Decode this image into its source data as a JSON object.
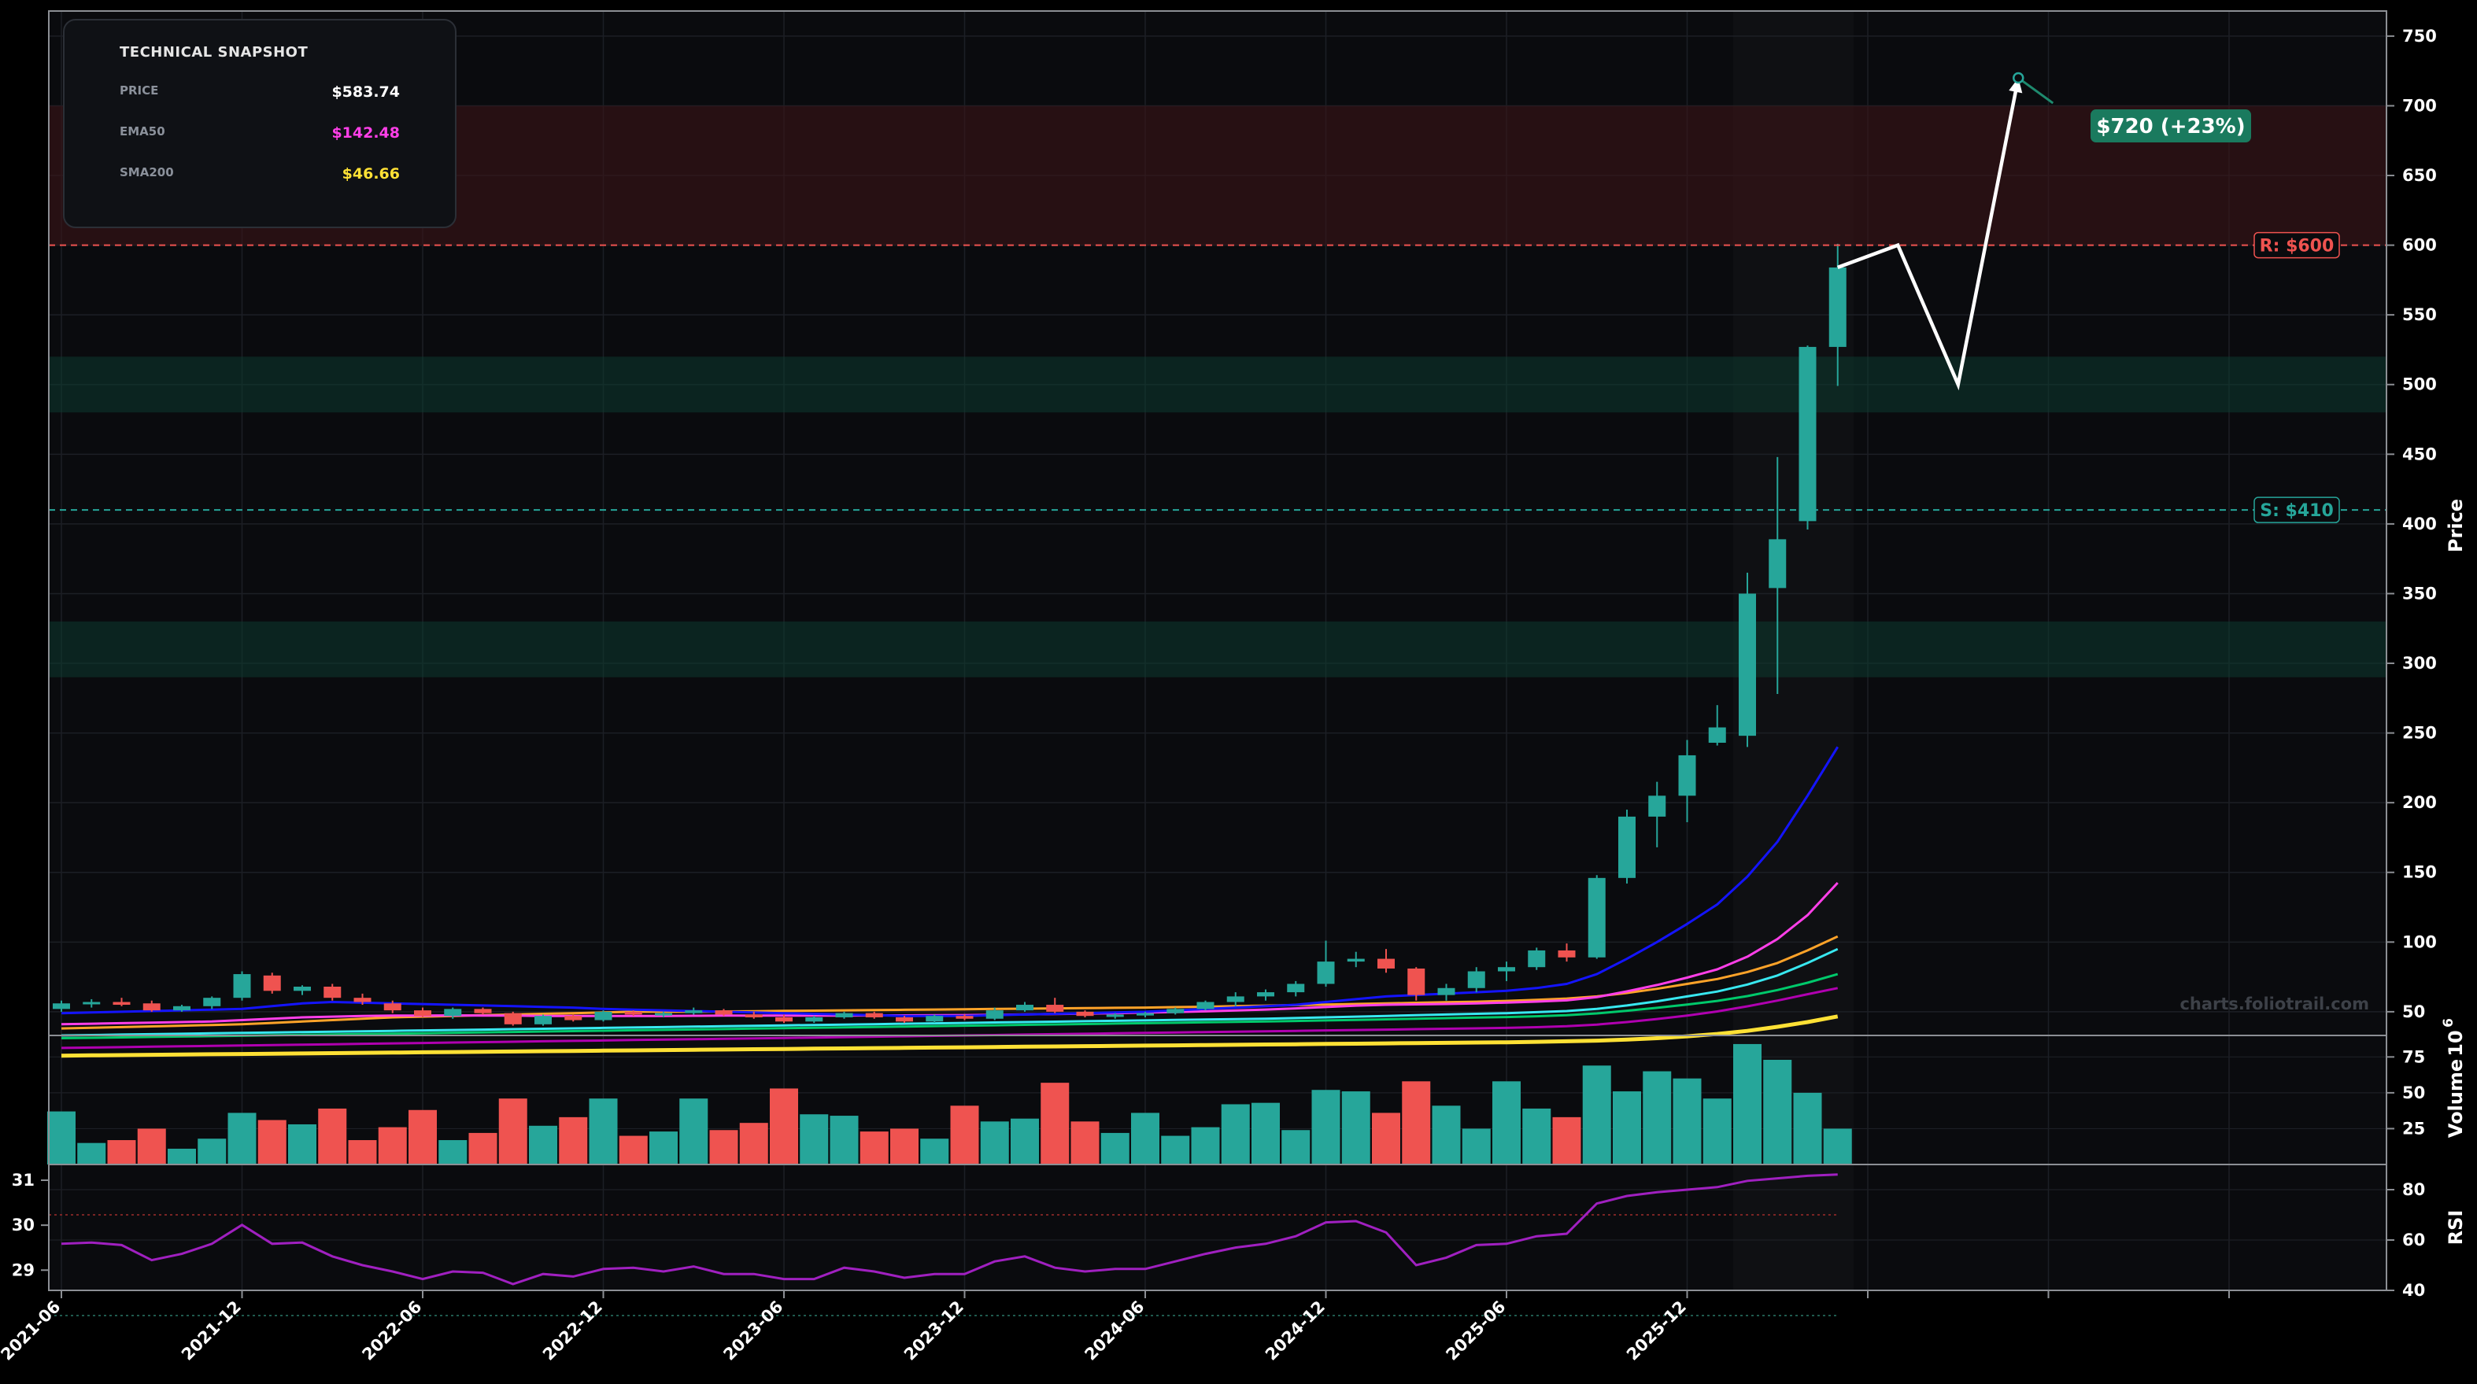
{
  "snapshot": {
    "title": "TECHNICAL SNAPSHOT",
    "rows": [
      {
        "label": "PRICE",
        "value": "$583.74",
        "color": "#ffffff"
      },
      {
        "label": "EMA50",
        "value": "$142.48",
        "color": "#ff3fe8"
      },
      {
        "label": "SMA200",
        "value": "$46.66",
        "color": "#ffe135"
      }
    ]
  },
  "watermark": "charts.foliotrail.com",
  "levels": {
    "resistance": {
      "label": "R: $600",
      "value": 600,
      "color": "#ef5350"
    },
    "support": {
      "label": "S: $410",
      "value": 410,
      "color": "#26a69a"
    }
  },
  "target_label": "$720 (+23%)",
  "colors": {
    "up": "#26a69a",
    "down": "#ef5350",
    "rsi": "#a020c0",
    "background": "#0a0b0e"
  },
  "chart_data": {
    "type": "candlestick",
    "x_tick_labels": [
      "2021-06",
      "2021-12",
      "2022-06",
      "2022-12",
      "2023-06",
      "2023-12",
      "2024-06",
      "2024-12",
      "2025-06",
      "2025-12"
    ],
    "months": [
      "2021-06",
      "2021-07",
      "2021-08",
      "2021-09",
      "2021-10",
      "2021-11",
      "2021-12",
      "2022-01",
      "2022-02",
      "2022-03",
      "2022-04",
      "2022-05",
      "2022-06",
      "2022-07",
      "2022-08",
      "2022-09",
      "2022-10",
      "2022-11",
      "2022-12",
      "2023-01",
      "2023-02",
      "2023-03",
      "2023-04",
      "2023-05",
      "2023-06",
      "2023-07",
      "2023-08",
      "2023-09",
      "2023-10",
      "2023-11",
      "2023-12",
      "2024-01",
      "2024-02",
      "2024-03",
      "2024-04",
      "2024-05",
      "2024-06",
      "2024-07",
      "2024-08",
      "2024-09",
      "2024-10",
      "2024-11",
      "2024-12",
      "2025-01",
      "2025-02",
      "2025-03",
      "2025-04",
      "2025-05",
      "2025-06",
      "2025-07",
      "2025-08",
      "2025-09",
      "2025-10",
      "2025-11",
      "2025-12",
      "2026-01",
      "2026-02",
      "2026-03",
      "2026-04",
      "2026-05"
    ],
    "ohlc": [
      [
        52,
        58,
        50,
        56
      ],
      [
        56,
        59,
        53,
        57
      ],
      [
        57,
        60,
        54,
        55
      ],
      [
        56,
        58,
        50,
        51
      ],
      [
        51,
        55,
        50,
        54
      ],
      [
        54,
        61,
        52,
        60
      ],
      [
        60,
        79,
        58,
        77
      ],
      [
        76,
        78,
        63,
        65
      ],
      [
        65,
        69,
        62,
        68
      ],
      [
        68,
        70,
        58,
        60
      ],
      [
        60,
        63,
        55,
        57
      ],
      [
        56,
        58,
        49,
        51
      ],
      [
        51,
        53,
        46,
        47
      ],
      [
        47,
        53,
        45,
        52
      ],
      [
        52,
        53,
        48,
        49
      ],
      [
        49,
        50,
        40,
        41
      ],
      [
        41,
        48,
        40,
        47
      ],
      [
        47,
        48,
        43,
        44
      ],
      [
        44,
        51,
        43,
        50
      ],
      [
        50,
        51,
        47,
        48
      ],
      [
        48,
        50,
        46,
        49
      ],
      [
        49,
        53,
        48,
        51
      ],
      [
        51,
        52,
        47,
        48
      ],
      [
        48,
        50,
        45,
        46
      ],
      [
        46,
        48,
        42,
        43
      ],
      [
        43,
        47,
        42,
        46
      ],
      [
        46,
        50,
        45,
        49
      ],
      [
        49,
        50,
        45,
        46
      ],
      [
        46,
        47,
        42,
        43
      ],
      [
        43,
        48,
        42,
        47
      ],
      [
        47,
        48,
        44,
        45
      ],
      [
        45,
        53,
        44,
        51
      ],
      [
        51,
        57,
        50,
        55
      ],
      [
        55,
        60,
        49,
        50
      ],
      [
        50,
        51,
        46,
        47
      ],
      [
        47,
        49,
        45,
        48
      ],
      [
        48,
        50,
        46,
        49
      ],
      [
        49,
        53,
        48,
        52
      ],
      [
        52,
        58,
        51,
        57
      ],
      [
        57,
        64,
        54,
        61
      ],
      [
        61,
        66,
        58,
        64
      ],
      [
        64,
        72,
        61,
        70
      ],
      [
        70,
        101,
        68,
        86
      ],
      [
        86,
        93,
        82,
        88
      ],
      [
        88,
        95,
        78,
        81
      ],
      [
        81,
        82,
        58,
        62
      ],
      [
        62,
        70,
        58,
        67
      ],
      [
        67,
        82,
        64,
        79
      ],
      [
        79,
        86,
        72,
        82
      ],
      [
        82,
        96,
        80,
        94
      ],
      [
        94,
        99,
        86,
        89
      ],
      [
        89,
        148,
        88,
        146
      ],
      [
        146,
        195,
        142,
        190
      ],
      [
        190,
        215,
        168,
        205
      ],
      [
        205,
        245,
        186,
        234
      ],
      [
        243,
        270,
        241,
        254
      ],
      [
        248,
        365,
        240,
        350
      ],
      [
        354,
        448,
        278,
        389
      ],
      [
        402,
        528,
        396,
        527
      ],
      [
        527,
        601,
        499,
        584
      ]
    ],
    "volume_millions": [
      37,
      15,
      17,
      25,
      11,
      18,
      36,
      31,
      28,
      39,
      17,
      26,
      38,
      17,
      22,
      46,
      27,
      33,
      46,
      20,
      23,
      46,
      24,
      29,
      53,
      35,
      34,
      23,
      25,
      18,
      41,
      30,
      32,
      57,
      30,
      22,
      36,
      20,
      26,
      42,
      43,
      24,
      52,
      51,
      36,
      58,
      41,
      25,
      58,
      39,
      33,
      69,
      51,
      65,
      60,
      46,
      84,
      73,
      50,
      25
    ],
    "ema50": [
      41,
      41.4,
      41.8,
      42.2,
      42.6,
      43,
      44,
      45,
      46,
      46.5,
      47,
      47.2,
      47.3,
      47.4,
      47.3,
      47.2,
      47,
      47,
      47,
      47,
      47,
      47.1,
      47.2,
      47.2,
      47.2,
      47.2,
      47.3,
      47.4,
      47.4,
      47.5,
      47.6,
      47.8,
      48.1,
      48.4,
      48.7,
      49,
      49.4,
      49.8,
      50.3,
      50.9,
      51.6,
      52.4,
      53.4,
      54.4,
      55,
      55.3,
      55.6,
      56,
      56.6,
      57.3,
      58.2,
      60.5,
      64.6,
      69.2,
      74.5,
      80.4,
      89.5,
      102.2,
      119.3,
      142.5
    ],
    "sma200": [
      18.5,
      18.7,
      18.9,
      19.1,
      19.3,
      19.5,
      19.7,
      19.9,
      20.1,
      20.3,
      20.5,
      20.7,
      20.9,
      21.1,
      21.3,
      21.5,
      21.7,
      21.9,
      22.1,
      22.3,
      22.5,
      22.7,
      22.9,
      23.1,
      23.3,
      23.5,
      23.7,
      23.9,
      24.1,
      24.3,
      24.5,
      24.7,
      24.9,
      25.1,
      25.3,
      25.5,
      25.7,
      25.9,
      26.1,
      26.3,
      26.5,
      26.7,
      26.9,
      27.1,
      27.3,
      27.5,
      27.7,
      27.9,
      28.1,
      28.4,
      28.8,
      29.3,
      30,
      31,
      32.4,
      34.1,
      36.3,
      39.2,
      42.6,
      46.66
    ],
    "ma_blue": [
      49,
      49.5,
      50,
      50.5,
      51,
      51.5,
      52,
      54,
      56,
      57,
      56.5,
      56,
      55.5,
      55,
      54.5,
      54,
      53.5,
      53,
      52,
      51.5,
      51,
      50.5,
      50,
      49.5,
      49,
      48.5,
      48,
      47.5,
      47,
      47,
      47,
      47.5,
      48,
      48.5,
      49,
      49.5,
      50,
      51,
      52,
      53,
      54,
      55,
      57,
      59,
      61,
      62,
      63,
      64,
      65,
      67,
      70,
      77,
      88,
      100,
      113,
      127,
      147,
      172,
      205,
      240
    ],
    "ma_orange": [
      38,
      38.5,
      39,
      39.5,
      40,
      40.5,
      41,
      42,
      43,
      44,
      45,
      46,
      46.5,
      47,
      47.5,
      48,
      48.5,
      49,
      49.5,
      50,
      50,
      50,
      50.2,
      50.4,
      50.6,
      50.8,
      51,
      51.2,
      51.4,
      51.6,
      51.8,
      52,
      52.2,
      52.4,
      52.6,
      52.8,
      53,
      53.3,
      53.6,
      54,
      54.4,
      54.8,
      55.2,
      55.6,
      56,
      56.4,
      56.8,
      57.2,
      57.8,
      58.5,
      59.5,
      61,
      63.5,
      66.5,
      70,
      73.5,
      78.5,
      85,
      94,
      104
    ],
    "ma_cyan": [
      33,
      33.3,
      33.6,
      33.9,
      34.2,
      34.5,
      34.8,
      35.1,
      35.4,
      35.7,
      36,
      36.3,
      36.6,
      36.9,
      37.2,
      37.5,
      37.8,
      38.1,
      38.4,
      38.7,
      39,
      39.3,
      39.6,
      39.9,
      40.2,
      40.5,
      40.8,
      41.1,
      41.4,
      41.7,
      42,
      42.3,
      42.6,
      42.9,
      43.2,
      43.5,
      43.8,
      44.1,
      44.4,
      44.7,
      45,
      45.5,
      46,
      46.5,
      47,
      47.5,
      48,
      48.5,
      49,
      49.7,
      50.5,
      52,
      54.5,
      57.5,
      61,
      64.5,
      69.5,
      76,
      85,
      95
    ],
    "ma_green": [
      31,
      31.3,
      31.6,
      31.9,
      32.2,
      32.5,
      32.8,
      33.1,
      33.4,
      33.7,
      34,
      34.3,
      34.6,
      34.9,
      35.2,
      35.5,
      35.8,
      36.1,
      36.4,
      36.7,
      37,
      37.3,
      37.6,
      37.9,
      38.2,
      38.5,
      38.8,
      39.1,
      39.4,
      39.7,
      40,
      40.3,
      40.6,
      40.9,
      41.2,
      41.5,
      41.8,
      42.1,
      42.4,
      42.7,
      43,
      43.4,
      43.8,
      44.2,
      44.6,
      45,
      45.4,
      45.8,
      46.2,
      46.8,
      47.5,
      48.8,
      50.7,
      52.8,
      55.2,
      57.8,
      61.2,
      65.6,
      70.8,
      77
    ],
    "ma_purple": [
      24,
      24.3,
      24.6,
      24.9,
      25.2,
      25.5,
      25.8,
      26.1,
      26.4,
      26.7,
      27,
      27.3,
      27.6,
      27.9,
      28.2,
      28.5,
      28.8,
      29.1,
      29.4,
      29.7,
      30,
      30.3,
      30.6,
      30.9,
      31.2,
      31.5,
      31.8,
      32.1,
      32.4,
      32.7,
      33,
      33.3,
      33.6,
      33.9,
      34.2,
      34.5,
      34.8,
      35.1,
      35.4,
      35.7,
      36,
      36.3,
      36.6,
      36.9,
      37.2,
      37.5,
      37.8,
      38.1,
      38.4,
      38.9,
      39.6,
      40.8,
      42.6,
      44.8,
      47.3,
      50.2,
      53.9,
      58,
      62.6,
      67
    ],
    "rsi": [
      58.5,
      59,
      58,
      52,
      54.5,
      58.5,
      66,
      58.5,
      59,
      53.5,
      50,
      47.5,
      44.5,
      47.5,
      47,
      42.5,
      46.5,
      45.5,
      48.5,
      49,
      47.5,
      49.5,
      46.5,
      46.5,
      44.5,
      44.5,
      49,
      47.5,
      45,
      46.5,
      46.5,
      51.5,
      53.5,
      49,
      47.5,
      48.5,
      48.5,
      51.5,
      54.5,
      57,
      58.5,
      61.5,
      67,
      67.5,
      63,
      50,
      53,
      58,
      58.5,
      61.5,
      62.5,
      74.5,
      77.5,
      79,
      80,
      81,
      83.5,
      84.5,
      85.5,
      86
    ],
    "projection": [
      {
        "date": "2026-05",
        "price": 584
      },
      {
        "date": "2026-07",
        "price": 600
      },
      {
        "date": "2026-09",
        "price": 500
      },
      {
        "date": "2026-11",
        "price": 720
      }
    ],
    "projection_target": {
      "date": "2026-11",
      "price": 720
    },
    "zones": [
      {
        "from": 600,
        "to": 700,
        "kind": "resistance-zone"
      },
      {
        "from": 480,
        "to": 520,
        "kind": "support-zone"
      },
      {
        "from": 290,
        "to": 330,
        "kind": "support-zone"
      }
    ],
    "price_axis": {
      "label": "Price",
      "range": [
        33,
        768
      ],
      "ticks": [
        50,
        100,
        150,
        200,
        250,
        300,
        350,
        400,
        450,
        500,
        550,
        600,
        650,
        700,
        750
      ]
    },
    "volume_axis": {
      "label": "Volume",
      "exponent": "6",
      "ticks": [
        25,
        50,
        75
      ],
      "range": [
        0,
        90
      ]
    },
    "rsi_axis": {
      "label": "RSI",
      "ticks": [
        40,
        60,
        80
      ],
      "range": [
        40,
        90
      ],
      "overbought": 70,
      "oversold": 30
    },
    "secondary_axis": {
      "ticks": [
        29,
        30,
        31
      ],
      "range": [
        28.55,
        31.35
      ]
    },
    "grid": true
  }
}
